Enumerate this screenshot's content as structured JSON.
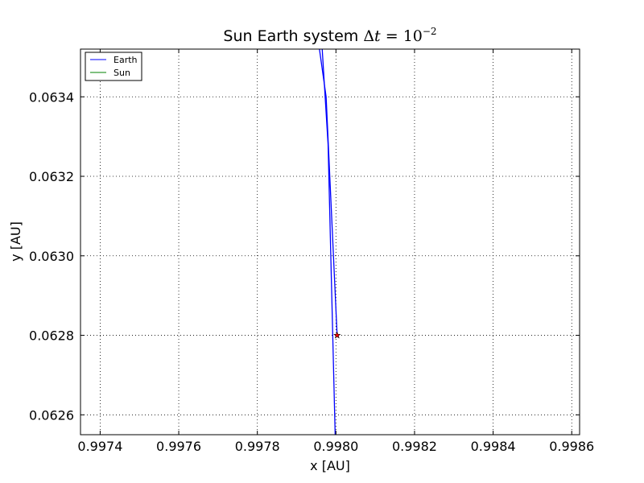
{
  "chart_data": {
    "type": "line",
    "title": {
      "prefix": "Sun Earth system ",
      "delta": "Δ",
      "var": "t",
      "equals": " = ",
      "base": "10",
      "exponent": "−2"
    },
    "xlabel": "x [AU]",
    "ylabel": "y [AU]",
    "xlim": [
      0.99735,
      0.99862
    ],
    "ylim": [
      0.06255,
      0.06352
    ],
    "x_ticks": [
      0.9974,
      0.9976,
      0.9978,
      0.998,
      0.9982,
      0.9984,
      0.9986
    ],
    "x_tick_labels": [
      "0.9974",
      "0.9976",
      "0.9978",
      "0.9980",
      "0.9982",
      "0.9984",
      "0.9986"
    ],
    "y_ticks": [
      0.0626,
      0.0628,
      0.063,
      0.0632,
      0.0634
    ],
    "y_tick_labels": [
      "0.0626",
      "0.0628",
      "0.0630",
      "0.0632",
      "0.0634"
    ],
    "grid": true,
    "legend_position": "top-left",
    "series": [
      {
        "name": "Earth",
        "color": "#0000ff",
        "segments": [
          {
            "x": [
              0.997998,
              0.99798,
              0.997965
            ],
            "y": [
              0.06255,
              0.06328,
              0.06352
            ]
          },
          {
            "x": [
              0.997958,
              0.997975,
              0.998003
            ],
            "y": [
              0.06352,
              0.0634,
              0.0628
            ]
          }
        ]
      },
      {
        "name": "Sun",
        "color": "#008000",
        "segments": []
      }
    ],
    "markers": [
      {
        "x": 0.998003,
        "y": 0.0628,
        "symbol": "star-icon",
        "color": "#ff0000"
      }
    ]
  }
}
